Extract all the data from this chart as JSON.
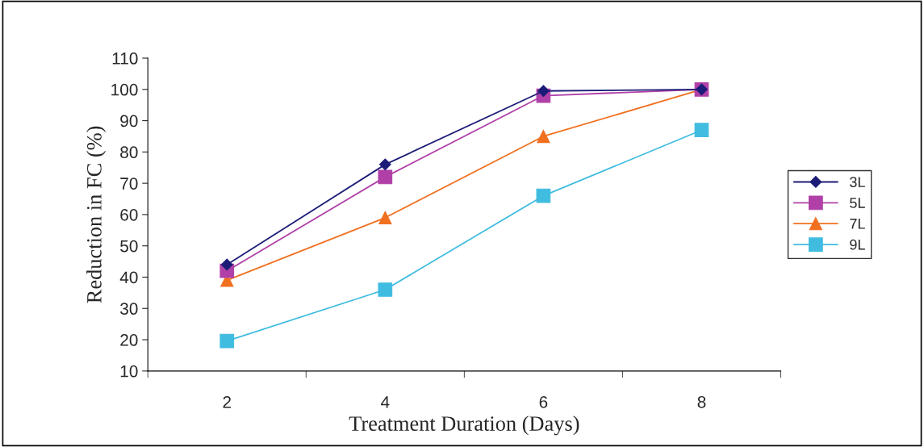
{
  "chart_data": {
    "type": "line",
    "xlabel": "Treatment Duration (Days)",
    "ylabel": "Reduction in FC (%)",
    "categories": [
      "2",
      "4",
      "6",
      "8"
    ],
    "series": [
      {
        "name": "3L",
        "color": "#1c1c78",
        "marker": "diamond",
        "values": [
          44,
          76,
          99.5,
          100
        ]
      },
      {
        "name": "5L",
        "color": "#b040a8",
        "marker": "square",
        "values": [
          42,
          72,
          98,
          100
        ]
      },
      {
        "name": "7L",
        "color": "#f07020",
        "marker": "triangle",
        "values": [
          39,
          59,
          85,
          100
        ]
      },
      {
        "name": "9L",
        "color": "#40bce0",
        "marker": "square",
        "values": [
          19.6,
          36,
          66,
          87
        ]
      }
    ],
    "ylim": [
      10,
      110
    ],
    "yticks": [
      10,
      20,
      30,
      40,
      50,
      60,
      70,
      80,
      90,
      100,
      110
    ],
    "grid": false,
    "legend": "right",
    "line_style": "solid"
  }
}
